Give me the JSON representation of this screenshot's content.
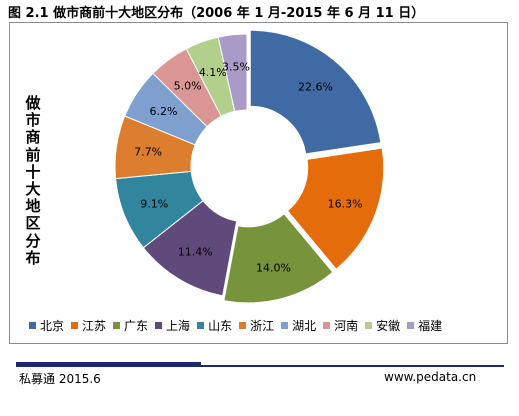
{
  "figure": {
    "title": "图 2.1  做市商前十大地区分布（2006 年 1 月-2015 年 6 月 11 日）"
  },
  "chart_data": {
    "type": "pie",
    "title": "做市商前十大地区分布",
    "categories": [
      "北京",
      "江苏",
      "广东",
      "上海",
      "山东",
      "浙江",
      "湖北",
      "河南",
      "安徽",
      "福建"
    ],
    "values": [
      22.6,
      16.3,
      14.0,
      11.4,
      9.1,
      7.7,
      6.2,
      5.0,
      4.1,
      3.5
    ],
    "value_labels": [
      "22.6%",
      "16.3%",
      "14.0%",
      "11.4%",
      "9.1%",
      "7.7%",
      "6.2%",
      "5.0%",
      "4.1%",
      "3.5%"
    ],
    "colors": [
      "#3f6aa3",
      "#e46c0a",
      "#77933c",
      "#604a7b",
      "#31859c",
      "#dd7e2e",
      "#7f9fcf",
      "#d99694",
      "#b3cf8c",
      "#a99ac8"
    ],
    "style": "donut",
    "legend": "bottom"
  },
  "footer": {
    "source": "私募通 2015.6",
    "website": "www.pedata.cn"
  }
}
